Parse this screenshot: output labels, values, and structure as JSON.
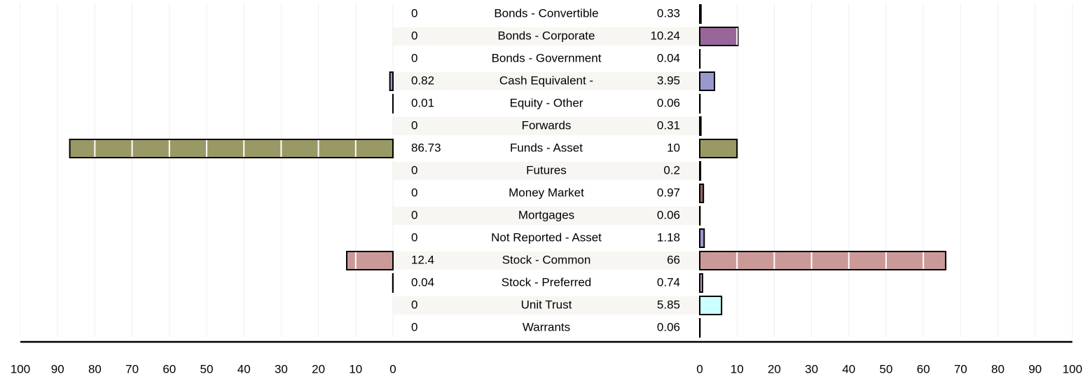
{
  "chart_data": {
    "type": "butterfly",
    "categories": [
      "Bonds - Convertible",
      "Bonds - Corporate",
      "Bonds - Government",
      "Cash Equivalent -",
      "Equity - Other",
      "Forwards",
      "Funds - Asset",
      "Futures",
      "Money Market",
      "Mortgages",
      "Not Reported - Asset",
      "Stock - Common",
      "Stock - Preferred",
      "Unit Trust",
      "Warrants"
    ],
    "series": [
      {
        "values": [
          0,
          0,
          0,
          0.82,
          0.01,
          0,
          86.73,
          0,
          0,
          0,
          0,
          12.4,
          0.04,
          0,
          0
        ]
      },
      {
        "values": [
          0.33,
          10.24,
          0.04,
          3.95,
          0.06,
          0.31,
          10,
          0.2,
          0.97,
          0.06,
          1.18,
          66,
          0.74,
          5.85,
          0.06
        ]
      }
    ],
    "colors": [
      "#cccc99",
      "#996699",
      "#99cccc",
      "#9999cc",
      "#cc99cc",
      "#cccc99",
      "#999966",
      "#99cc99",
      "#996666",
      "#cccccc",
      "#9999cc",
      "#cc9999",
      "#cc99cc",
      "#ccffff",
      "#99cccc"
    ],
    "xlim": [
      0,
      100
    ],
    "xticks": [
      0,
      10,
      20,
      30,
      40,
      50,
      60,
      70,
      80,
      90,
      100
    ],
    "grid": true
  }
}
